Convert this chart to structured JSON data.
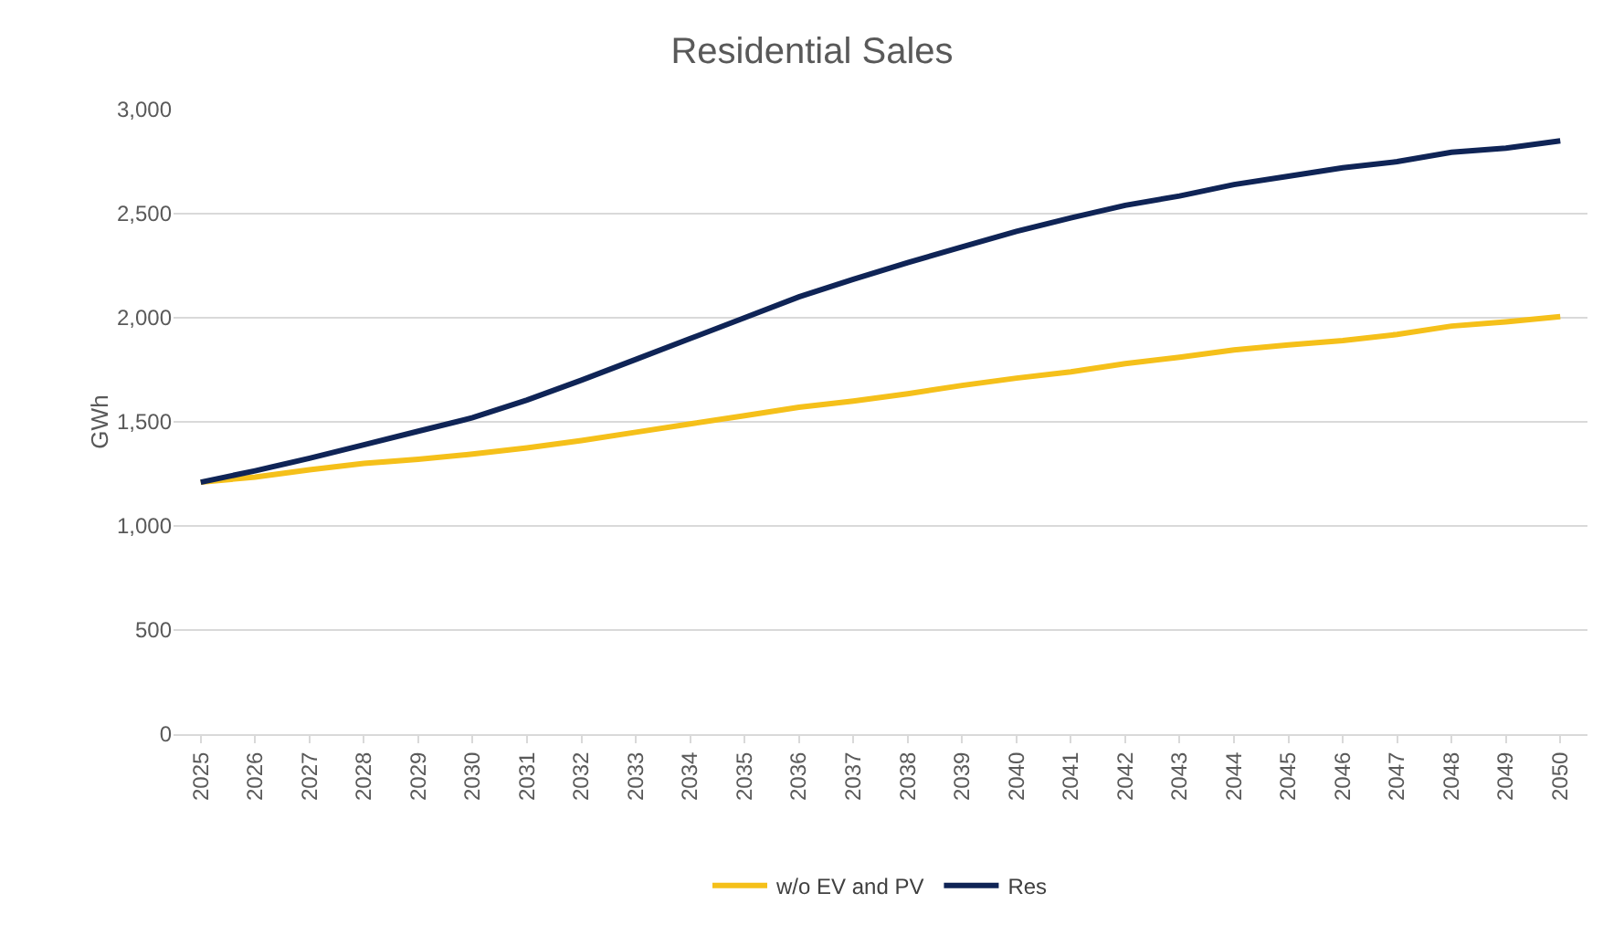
{
  "chart_data": {
    "type": "line",
    "title": "Residential Sales",
    "ylabel": "GWh",
    "categories": [
      "2025",
      "2026",
      "2027",
      "2028",
      "2029",
      "2030",
      "2031",
      "2032",
      "2033",
      "2034",
      "2035",
      "2036",
      "2037",
      "2038",
      "2039",
      "2040",
      "2041",
      "2042",
      "2043",
      "2044",
      "2045",
      "2046",
      "2047",
      "2048",
      "2049",
      "2050"
    ],
    "series": [
      {
        "name": "w/o EV and PV",
        "color": "#f5c01a",
        "values": [
          1210,
          1235,
          1270,
          1300,
          1320,
          1345,
          1375,
          1410,
          1450,
          1490,
          1530,
          1570,
          1600,
          1635,
          1675,
          1710,
          1740,
          1780,
          1810,
          1845,
          1870,
          1890,
          1920,
          1960,
          1980,
          2005
        ]
      },
      {
        "name": "Res",
        "color": "#0f2456",
        "values": [
          1210,
          1265,
          1325,
          1390,
          1455,
          1520,
          1605,
          1700,
          1800,
          1900,
          2000,
          2100,
          2185,
          2265,
          2340,
          2415,
          2480,
          2540,
          2585,
          2640,
          2680,
          2720,
          2750,
          2795,
          2815,
          2850
        ]
      }
    ],
    "ylim": [
      0,
      3000
    ],
    "yticks": [
      {
        "value": 0,
        "label": "0"
      },
      {
        "value": 500,
        "label": "500"
      },
      {
        "value": 1000,
        "label": "1,000"
      },
      {
        "value": 1500,
        "label": "1,500"
      },
      {
        "value": 2000,
        "label": "2,000"
      },
      {
        "value": 2500,
        "label": "2,500"
      },
      {
        "value": 3000,
        "label": "3,000"
      }
    ],
    "grid": "y",
    "legend": "bottom",
    "marker": "none",
    "line_style": "solid"
  }
}
